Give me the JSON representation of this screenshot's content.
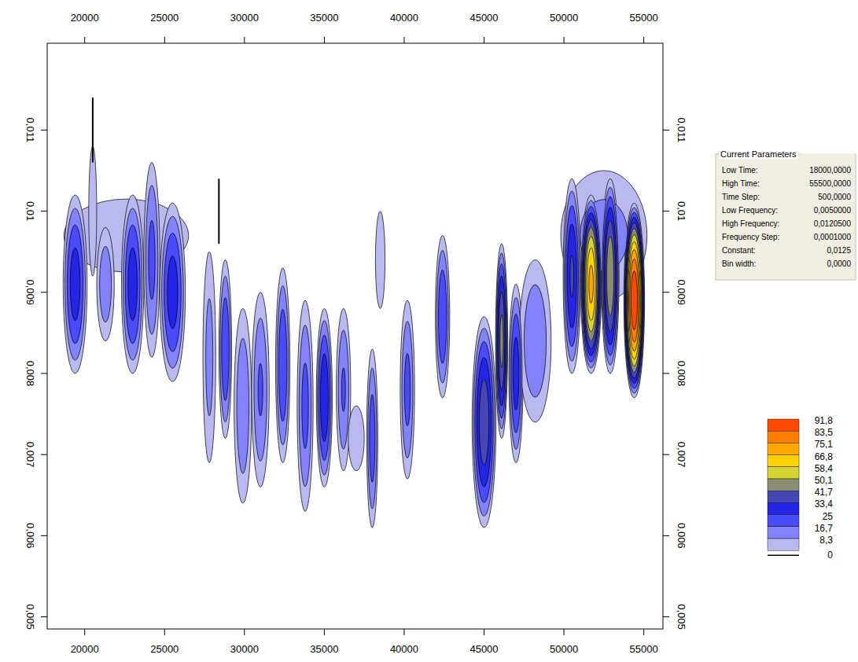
{
  "chart_data": {
    "type": "contour",
    "xlim": [
      17650,
      56200
    ],
    "ylim": [
      0.00485,
      0.01207
    ],
    "xticks": [
      20000,
      25000,
      30000,
      35000,
      40000,
      45000,
      50000,
      55000
    ],
    "yticks": [
      {
        "value": 0.005,
        "label": "0,005"
      },
      {
        "value": 0.006,
        "label": "0,006"
      },
      {
        "value": 0.007,
        "label": "0,007"
      },
      {
        "value": 0.008,
        "label": "0,008"
      },
      {
        "value": 0.009,
        "label": "0,009"
      },
      {
        "value": 0.01,
        "label": "0,01"
      },
      {
        "value": 0.011,
        "label": "0,011"
      }
    ],
    "colorbar": {
      "levels": [
        {
          "value": 0,
          "label": "0"
        },
        {
          "value": 8.3,
          "label": "8,3"
        },
        {
          "value": 16.7,
          "label": "16,7"
        },
        {
          "value": 25,
          "label": "25"
        },
        {
          "value": 33.4,
          "label": "33,4"
        },
        {
          "value": 41.7,
          "label": "41,7"
        },
        {
          "value": 50.1,
          "label": "50,1"
        },
        {
          "value": 58.4,
          "label": "58,4"
        },
        {
          "value": 66.8,
          "label": "66,8"
        },
        {
          "value": 75.1,
          "label": "75,1"
        },
        {
          "value": 83.5,
          "label": "83,5"
        },
        {
          "value": 91.8,
          "label": "91,8"
        }
      ],
      "colors": [
        "#b9b9ef",
        "#8282fa",
        "#4a4aff",
        "#2424e6",
        "#4646b4",
        "#8c8c70",
        "#d4d434",
        "#ffd200",
        "#ffa800",
        "#ff7e00",
        "#ff4a00"
      ]
    },
    "blobs": [
      {
        "x": 22600,
        "y": 0.0097,
        "w": 3900,
        "h": 0.00045,
        "peak": 8
      },
      {
        "x": 19400,
        "y": 0.0091,
        "w": 750,
        "h": 0.0011,
        "peak": 30
      },
      {
        "x": 20500,
        "y": 0.01,
        "w": 250,
        "h": 0.0008,
        "peak": 6
      },
      {
        "x": 21300,
        "y": 0.0091,
        "w": 550,
        "h": 0.0007,
        "peak": 15
      },
      {
        "x": 23000,
        "y": 0.0091,
        "w": 700,
        "h": 0.0011,
        "peak": 30
      },
      {
        "x": 24200,
        "y": 0.0094,
        "w": 500,
        "h": 0.0012,
        "peak": 20
      },
      {
        "x": 25500,
        "y": 0.009,
        "w": 800,
        "h": 0.0011,
        "peak": 30
      },
      {
        "x": 27800,
        "y": 0.0082,
        "w": 400,
        "h": 0.0013,
        "peak": 12
      },
      {
        "x": 28800,
        "y": 0.0083,
        "w": 400,
        "h": 0.0011,
        "peak": 25
      },
      {
        "x": 29900,
        "y": 0.0076,
        "w": 550,
        "h": 0.0012,
        "peak": 16
      },
      {
        "x": 31000,
        "y": 0.0078,
        "w": 550,
        "h": 0.0012,
        "peak": 18
      },
      {
        "x": 32400,
        "y": 0.0081,
        "w": 450,
        "h": 0.0012,
        "peak": 25
      },
      {
        "x": 33800,
        "y": 0.0076,
        "w": 500,
        "h": 0.0013,
        "peak": 20
      },
      {
        "x": 35000,
        "y": 0.0077,
        "w": 500,
        "h": 0.0011,
        "peak": 33
      },
      {
        "x": 36200,
        "y": 0.0078,
        "w": 450,
        "h": 0.001,
        "peak": 18
      },
      {
        "x": 37000,
        "y": 0.0072,
        "w": 500,
        "h": 0.0004,
        "peak": 6
      },
      {
        "x": 38000,
        "y": 0.0072,
        "w": 350,
        "h": 0.0011,
        "peak": 22
      },
      {
        "x": 38500,
        "y": 0.0094,
        "w": 300,
        "h": 0.0006,
        "peak": 8
      },
      {
        "x": 40200,
        "y": 0.0078,
        "w": 450,
        "h": 0.0011,
        "peak": 20
      },
      {
        "x": 42400,
        "y": 0.0087,
        "w": 450,
        "h": 0.001,
        "peak": 25
      },
      {
        "x": 45000,
        "y": 0.0074,
        "w": 750,
        "h": 0.0013,
        "peak": 40
      },
      {
        "x": 46100,
        "y": 0.0084,
        "w": 380,
        "h": 0.0012,
        "peak": 45
      },
      {
        "x": 47000,
        "y": 0.008,
        "w": 450,
        "h": 0.0011,
        "peak": 30
      },
      {
        "x": 48200,
        "y": 0.0084,
        "w": 1000,
        "h": 0.001,
        "peak": 16
      },
      {
        "x": 52500,
        "y": 0.0097,
        "w": 2700,
        "h": 0.0008,
        "peak": 12
      },
      {
        "x": 50500,
        "y": 0.0092,
        "w": 550,
        "h": 0.0012,
        "peak": 35
      },
      {
        "x": 51700,
        "y": 0.0091,
        "w": 650,
        "h": 0.0011,
        "peak": 70
      },
      {
        "x": 52900,
        "y": 0.0092,
        "w": 550,
        "h": 0.0012,
        "peak": 50
      },
      {
        "x": 54400,
        "y": 0.0089,
        "w": 650,
        "h": 0.0012,
        "peak": 92
      }
    ],
    "lines": [
      {
        "x": 20500,
        "y1": 0.0106,
        "y2": 0.0114
      },
      {
        "x": 28400,
        "y1": 0.0096,
        "y2": 0.0104
      }
    ],
    "parameters": {
      "title": "Current Parameters",
      "rows": [
        [
          "Low Time:",
          "18000,0000"
        ],
        [
          "High Time:",
          "55500,0000"
        ],
        [
          "Time Step:",
          "500,0000"
        ],
        [
          "Low Frequency:",
          "0,0050000"
        ],
        [
          "High Frequency:",
          "0,0120500"
        ],
        [
          "Frequency Step:",
          "0,0001000"
        ],
        [
          "Constant:",
          "0,0125"
        ],
        [
          "Bin width:",
          "0,0000"
        ]
      ]
    }
  }
}
